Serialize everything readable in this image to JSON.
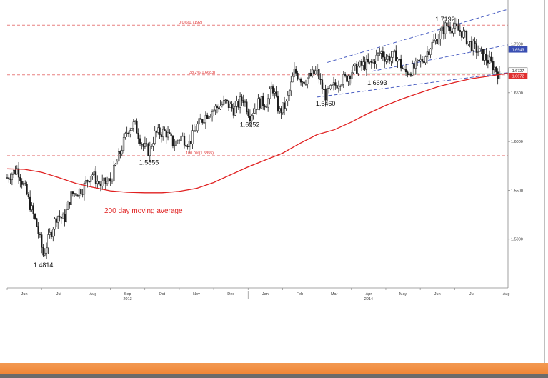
{
  "chart_data": {
    "type": "candlestick",
    "title": "",
    "xlabel": "",
    "ylabel": "",
    "ylim": [
      1.45,
      1.745
    ],
    "months": [
      {
        "label": "Jun",
        "t": 0.5
      },
      {
        "label": "Jul",
        "t": 1.5
      },
      {
        "label": "Aug",
        "t": 2.5
      },
      {
        "label": "Sep",
        "t": 3.5
      },
      {
        "label": "Oct",
        "t": 4.5
      },
      {
        "label": "Nov",
        "t": 5.5
      },
      {
        "label": "Dec",
        "t": 6.5
      },
      {
        "label": "Jan",
        "t": 7.5
      },
      {
        "label": "Feb",
        "t": 8.5
      },
      {
        "label": "Mar",
        "t": 9.5
      },
      {
        "label": "Apr",
        "t": 10.5
      },
      {
        "label": "May",
        "t": 11.5
      },
      {
        "label": "Jun",
        "t": 12.5
      },
      {
        "label": "Jul",
        "t": 13.5
      },
      {
        "label": "Aug",
        "t": 14.5
      }
    ],
    "years": [
      {
        "label": "2013",
        "t": 3.5
      },
      {
        "label": "2014",
        "t": 10.5
      }
    ],
    "xlim": [
      0,
      14.55
    ],
    "y_ticks": [
      {
        "label": "1.7000",
        "value": 1.7
      },
      {
        "label": "1.6500",
        "value": 1.65
      },
      {
        "label": "1.6000",
        "value": 1.6
      },
      {
        "label": "1.5500",
        "value": 1.55
      },
      {
        "label": "1.5000",
        "value": 1.5
      }
    ],
    "price_tags": [
      {
        "label": "1.6943",
        "value": 1.6943,
        "color": "#3a4fb3"
      },
      {
        "label": "1.6727",
        "value": 1.6727,
        "color": "#ffffff"
      },
      {
        "label": "1.6672",
        "value": 1.6672,
        "color": "#e03030"
      }
    ],
    "fib_levels": [
      {
        "label": "0.0%(1.7192)",
        "value": 1.7192
      },
      {
        "label": "38.2%(1.6683)",
        "value": 1.6683
      },
      {
        "label": "100.0%(1.5855)",
        "value": 1.5855
      }
    ],
    "support_level": 1.6693,
    "channel": {
      "upper": [
        [
          9.3,
          1.681
        ],
        [
          14.55,
          1.7355
        ]
      ],
      "middle": [
        [
          10.6,
          1.672
        ],
        [
          14.55,
          1.699
        ]
      ],
      "lower": [
        [
          9.0,
          1.6455
        ],
        [
          14.55,
          1.6705
        ]
      ]
    },
    "annotations": [
      {
        "text": "1.4814",
        "t": 1.05,
        "y": 1.48
      },
      {
        "text": "1.5855",
        "t": 4.12,
        "y": 1.585
      },
      {
        "text": "1.6252",
        "t": 7.05,
        "y": 1.624
      },
      {
        "text": "1.6460",
        "t": 9.25,
        "y": 1.6455
      },
      {
        "text": "1.6693",
        "t": 10.75,
        "y": 1.6665
      },
      {
        "text": "1.7192",
        "t": 12.72,
        "y": 1.7192
      }
    ],
    "ma_label": "200 day moving average",
    "ma200": [
      [
        0,
        1.572
      ],
      [
        0.5,
        1.5715
      ],
      [
        1.0,
        1.5685
      ],
      [
        1.5,
        1.563
      ],
      [
        2.0,
        1.557
      ],
      [
        2.5,
        1.553
      ],
      [
        3.0,
        1.5495
      ],
      [
        3.5,
        1.548
      ],
      [
        4.0,
        1.5475
      ],
      [
        4.5,
        1.5475
      ],
      [
        5.0,
        1.549
      ],
      [
        5.5,
        1.552
      ],
      [
        6.0,
        1.558
      ],
      [
        6.5,
        1.566
      ],
      [
        7.0,
        1.574
      ],
      [
        7.5,
        1.581
      ],
      [
        8.0,
        1.588
      ],
      [
        8.5,
        1.598
      ],
      [
        9.0,
        1.607
      ],
      [
        9.5,
        1.612
      ],
      [
        10.0,
        1.62
      ],
      [
        10.5,
        1.629
      ],
      [
        11.0,
        1.637
      ],
      [
        11.5,
        1.644
      ],
      [
        12.0,
        1.65
      ],
      [
        12.5,
        1.656
      ],
      [
        13.0,
        1.6605
      ],
      [
        13.5,
        1.6645
      ],
      [
        14.0,
        1.667
      ],
      [
        14.55,
        1.67
      ]
    ],
    "price_path": [
      [
        0,
        1.563
      ],
      [
        0.3,
        1.572
      ],
      [
        0.55,
        1.548
      ],
      [
        0.85,
        1.515
      ],
      [
        1.05,
        1.484
      ],
      [
        1.25,
        1.505
      ],
      [
        1.45,
        1.525
      ],
      [
        1.65,
        1.52
      ],
      [
        1.85,
        1.545
      ],
      [
        2.2,
        1.552
      ],
      [
        2.45,
        1.568
      ],
      [
        2.7,
        1.555
      ],
      [
        3.0,
        1.56
      ],
      [
        3.3,
        1.59
      ],
      [
        3.5,
        1.612
      ],
      [
        3.7,
        1.618
      ],
      [
        3.95,
        1.595
      ],
      [
        4.12,
        1.59
      ],
      [
        4.3,
        1.608
      ],
      [
        4.6,
        1.61
      ],
      [
        4.85,
        1.597
      ],
      [
        5.05,
        1.605
      ],
      [
        5.3,
        1.598
      ],
      [
        5.5,
        1.615
      ],
      [
        5.8,
        1.628
      ],
      [
        6.1,
        1.635
      ],
      [
        6.35,
        1.64
      ],
      [
        6.6,
        1.632
      ],
      [
        6.85,
        1.645
      ],
      [
        7.05,
        1.627
      ],
      [
        7.3,
        1.64
      ],
      [
        7.55,
        1.64
      ],
      [
        7.7,
        1.657
      ],
      [
        7.9,
        1.63
      ],
      [
        8.1,
        1.638
      ],
      [
        8.35,
        1.672
      ],
      [
        8.6,
        1.662
      ],
      [
        8.85,
        1.668
      ],
      [
        9.0,
        1.672
      ],
      [
        9.15,
        1.655
      ],
      [
        9.25,
        1.647
      ],
      [
        9.45,
        1.655
      ],
      [
        9.65,
        1.662
      ],
      [
        9.85,
        1.665
      ],
      [
        10.0,
        1.672
      ],
      [
        10.3,
        1.678
      ],
      [
        10.6,
        1.68
      ],
      [
        10.85,
        1.692
      ],
      [
        11.0,
        1.685
      ],
      [
        11.3,
        1.688
      ],
      [
        11.55,
        1.67
      ],
      [
        11.85,
        1.676
      ],
      [
        12.1,
        1.685
      ],
      [
        12.3,
        1.698
      ],
      [
        12.5,
        1.706
      ],
      [
        12.75,
        1.719
      ],
      [
        13.0,
        1.716
      ],
      [
        13.2,
        1.712
      ],
      [
        13.45,
        1.7
      ],
      [
        13.7,
        1.692
      ],
      [
        13.95,
        1.684
      ],
      [
        14.15,
        1.676
      ],
      [
        14.3,
        1.6672
      ]
    ],
    "colors": {
      "candle": "#1a1a1a",
      "ma": "#e02020",
      "channel": "#4a5ec2",
      "fib": "#e88080",
      "support": "#3aa040",
      "axis_text": "#333333"
    }
  }
}
